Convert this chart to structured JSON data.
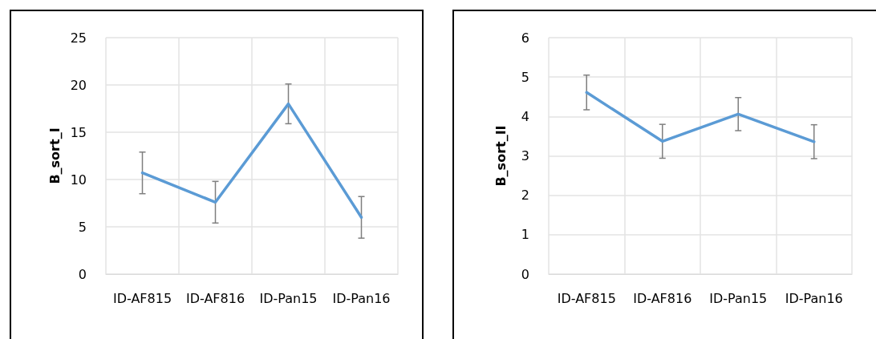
{
  "chart_data": [
    {
      "type": "line",
      "ylabel": "B_sort_I",
      "categories": [
        "ID-AF815",
        "ID-AF816",
        "ID-Pan15",
        "ID-Pan16"
      ],
      "series": [
        {
          "color": "#5b9bd5",
          "values": [
            10.7,
            7.6,
            18.0,
            6.0
          ],
          "errors": [
            2.2,
            2.2,
            2.1,
            2.2
          ]
        }
      ],
      "ylim": [
        0,
        25
      ],
      "yticks": [
        0,
        5,
        10,
        15,
        20,
        25
      ],
      "grid": true,
      "marker": "none",
      "line_style": "solid"
    },
    {
      "type": "line",
      "ylabel": "B_sort_II",
      "categories": [
        "ID-AF815",
        "ID-AF816",
        "ID-Pan15",
        "ID-Pan16"
      ],
      "series": [
        {
          "color": "#5b9bd5",
          "values": [
            4.61,
            3.37,
            4.06,
            3.36
          ],
          "errors": [
            0.44,
            0.43,
            0.42,
            0.43
          ]
        }
      ],
      "ylim": [
        0,
        6
      ],
      "yticks": [
        0,
        1,
        2,
        3,
        4,
        5,
        6
      ],
      "grid": true,
      "marker": "none",
      "line_style": "solid"
    }
  ]
}
